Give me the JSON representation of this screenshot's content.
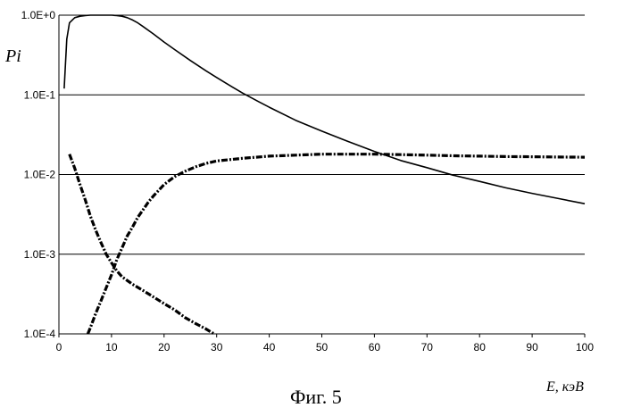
{
  "chart_data": {
    "type": "line",
    "title": "",
    "caption": "Фиг. 5",
    "xlabel": "E, кэВ",
    "ylabel": "Pi",
    "xlim": [
      0,
      100
    ],
    "ylim": [
      0.0001,
      1
    ],
    "yscale": "log",
    "grid": {
      "horizontal": true,
      "vertical": false
    },
    "legend": "none",
    "x_ticks": [
      "0",
      "10",
      "20",
      "30",
      "40",
      "50",
      "60",
      "70",
      "80",
      "90",
      "100"
    ],
    "y_ticks": [
      "1.0E-4",
      "1.0E-3",
      "1.0E-2",
      "1.0E-1",
      "1.0E+0"
    ],
    "series": [
      {
        "style": "solid",
        "color": "#000000",
        "x": [
          1,
          1.5,
          2,
          3,
          4,
          5,
          6,
          7,
          8,
          9,
          10,
          11,
          12,
          13,
          14,
          15,
          16,
          18,
          20,
          22,
          25,
          28,
          30,
          33,
          35,
          38,
          40,
          45,
          50,
          55,
          60,
          65,
          70,
          75,
          80,
          85,
          90,
          95,
          100
        ],
        "y": [
          0.12,
          0.5,
          0.8,
          0.93,
          0.97,
          0.99,
          1.0,
          1.0,
          1.0,
          1.0,
          1.0,
          0.99,
          0.97,
          0.93,
          0.87,
          0.8,
          0.72,
          0.58,
          0.46,
          0.37,
          0.27,
          0.2,
          0.165,
          0.125,
          0.105,
          0.082,
          0.07,
          0.048,
          0.035,
          0.026,
          0.0195,
          0.015,
          0.0122,
          0.0098,
          0.0082,
          0.0068,
          0.0058,
          0.005,
          0.0043
        ]
      },
      {
        "style": "dashed",
        "color": "#000000",
        "x": [
          5.5,
          6,
          7,
          8,
          9,
          10,
          11,
          12,
          13,
          14,
          15,
          16,
          17,
          18,
          20,
          22,
          24,
          26,
          28,
          30,
          35,
          40,
          45,
          50,
          55,
          60,
          65,
          70,
          75,
          80,
          85,
          90,
          95,
          100
        ],
        "y": [
          0.0001,
          0.00012,
          0.00018,
          0.00026,
          0.00038,
          0.00055,
          0.00085,
          0.0012,
          0.0017,
          0.0022,
          0.0029,
          0.0036,
          0.0045,
          0.0054,
          0.0075,
          0.0094,
          0.011,
          0.0125,
          0.0138,
          0.0148,
          0.016,
          0.017,
          0.0175,
          0.018,
          0.018,
          0.018,
          0.0178,
          0.0175,
          0.0172,
          0.017,
          0.0168,
          0.0167,
          0.0166,
          0.0165
        ]
      },
      {
        "style": "dashed",
        "color": "#000000",
        "x": [
          2,
          3,
          4,
          5,
          6,
          7,
          8,
          9,
          10,
          11,
          12,
          14,
          16,
          18,
          20,
          22,
          24,
          26,
          28,
          29.5
        ],
        "y": [
          0.018,
          0.012,
          0.0075,
          0.0048,
          0.003,
          0.002,
          0.0014,
          0.001,
          0.00078,
          0.00062,
          0.00052,
          0.00042,
          0.00035,
          0.00029,
          0.00024,
          0.0002,
          0.00016,
          0.000135,
          0.000115,
          0.0001
        ]
      }
    ]
  }
}
